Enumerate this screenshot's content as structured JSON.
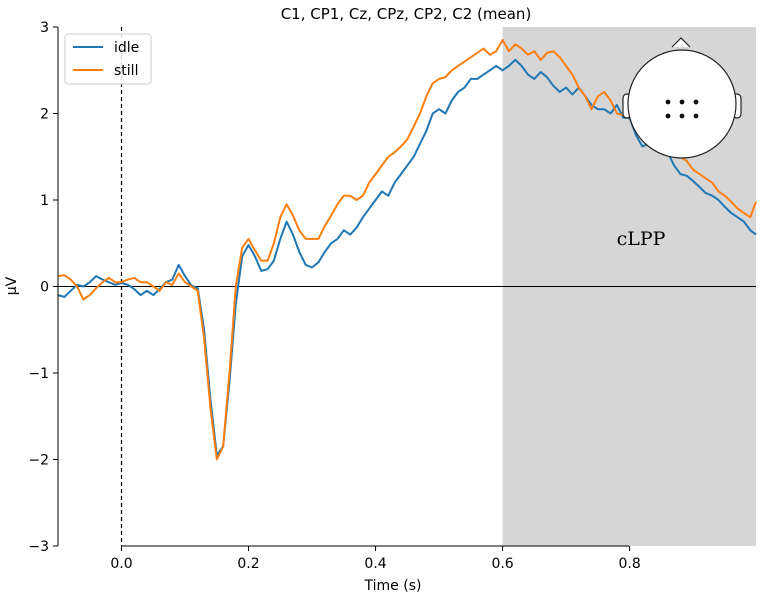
{
  "chart_data": {
    "type": "line",
    "title": "C1, CP1, Cz, CPz, CP2, C2 (mean)",
    "xlabel": "Time (s)",
    "ylabel": "µV",
    "xlim": [
      -0.1,
      0.999
    ],
    "ylim": [
      -3,
      3
    ],
    "xticks": [
      0.0,
      0.2,
      0.4,
      0.6,
      0.8
    ],
    "xtick_labels": [
      "0.0",
      "0.2",
      "0.4",
      "0.6",
      "0.8"
    ],
    "yticks": [
      -3,
      -2,
      -1,
      0,
      1,
      2,
      3
    ],
    "ytick_labels": [
      "−3",
      "−2",
      "−1",
      "0",
      "1",
      "2",
      "3"
    ],
    "grid": false,
    "legend_position": "top-left",
    "shaded_region": {
      "x": [
        0.6,
        0.999
      ],
      "label": "cLPP"
    },
    "vertical_line_x": 0.0,
    "horizontal_line_y": 0.0,
    "sensor_inset": "head-topomap-6-sensors",
    "series": [
      {
        "name": "idle",
        "color": "#1f77b4",
        "x": [
          -0.1,
          -0.09,
          -0.08,
          -0.07,
          -0.06,
          -0.05,
          -0.04,
          -0.03,
          -0.02,
          -0.01,
          0.0,
          0.01,
          0.02,
          0.03,
          0.04,
          0.05,
          0.06,
          0.07,
          0.08,
          0.09,
          0.1,
          0.11,
          0.12,
          0.13,
          0.14,
          0.15,
          0.16,
          0.17,
          0.18,
          0.19,
          0.2,
          0.21,
          0.22,
          0.23,
          0.24,
          0.25,
          0.26,
          0.27,
          0.28,
          0.29,
          0.3,
          0.31,
          0.32,
          0.33,
          0.34,
          0.35,
          0.36,
          0.37,
          0.38,
          0.39,
          0.4,
          0.41,
          0.42,
          0.43,
          0.44,
          0.45,
          0.46,
          0.47,
          0.48,
          0.49,
          0.5,
          0.51,
          0.52,
          0.53,
          0.54,
          0.55,
          0.56,
          0.57,
          0.58,
          0.59,
          0.6,
          0.61,
          0.62,
          0.63,
          0.64,
          0.65,
          0.66,
          0.67,
          0.68,
          0.69,
          0.7,
          0.71,
          0.72,
          0.73,
          0.74,
          0.75,
          0.76,
          0.77,
          0.78,
          0.79,
          0.8,
          0.81,
          0.82,
          0.83,
          0.84,
          0.85,
          0.86,
          0.87,
          0.88,
          0.89,
          0.9,
          0.91,
          0.92,
          0.93,
          0.94,
          0.95,
          0.96,
          0.97,
          0.98,
          0.99,
          0.999
        ],
        "values": [
          -0.1,
          -0.12,
          -0.05,
          0.02,
          0.0,
          0.05,
          0.12,
          0.08,
          0.05,
          0.02,
          0.04,
          0.02,
          -0.03,
          -0.1,
          -0.05,
          -0.1,
          -0.03,
          0.05,
          0.08,
          0.25,
          0.12,
          0.01,
          -0.02,
          -0.5,
          -1.3,
          -1.95,
          -1.85,
          -1.1,
          -0.2,
          0.35,
          0.48,
          0.35,
          0.18,
          0.2,
          0.3,
          0.55,
          0.75,
          0.6,
          0.4,
          0.25,
          0.22,
          0.28,
          0.4,
          0.5,
          0.55,
          0.65,
          0.6,
          0.68,
          0.8,
          0.9,
          1.0,
          1.1,
          1.05,
          1.2,
          1.3,
          1.4,
          1.5,
          1.65,
          1.8,
          2.0,
          2.05,
          2.0,
          2.15,
          2.25,
          2.3,
          2.4,
          2.4,
          2.45,
          2.5,
          2.55,
          2.5,
          2.55,
          2.62,
          2.55,
          2.45,
          2.4,
          2.48,
          2.42,
          2.32,
          2.25,
          2.3,
          2.22,
          2.3,
          2.2,
          2.1,
          2.05,
          2.05,
          2.0,
          2.1,
          1.95,
          1.95,
          1.75,
          1.62,
          1.65,
          1.6,
          1.68,
          1.55,
          1.4,
          1.3,
          1.28,
          1.22,
          1.15,
          1.08,
          1.05,
          1.0,
          0.92,
          0.85,
          0.8,
          0.75,
          0.65,
          0.6
        ]
      },
      {
        "name": "still",
        "color": "#ff7f0e",
        "x": [
          -0.1,
          -0.09,
          -0.08,
          -0.07,
          -0.06,
          -0.05,
          -0.04,
          -0.03,
          -0.02,
          -0.01,
          0.0,
          0.01,
          0.02,
          0.03,
          0.04,
          0.05,
          0.06,
          0.07,
          0.08,
          0.09,
          0.1,
          0.11,
          0.12,
          0.13,
          0.14,
          0.15,
          0.16,
          0.17,
          0.18,
          0.19,
          0.2,
          0.21,
          0.22,
          0.23,
          0.24,
          0.25,
          0.26,
          0.27,
          0.28,
          0.29,
          0.3,
          0.31,
          0.32,
          0.33,
          0.34,
          0.35,
          0.36,
          0.37,
          0.38,
          0.39,
          0.4,
          0.41,
          0.42,
          0.43,
          0.44,
          0.45,
          0.46,
          0.47,
          0.48,
          0.49,
          0.5,
          0.51,
          0.52,
          0.53,
          0.54,
          0.55,
          0.56,
          0.57,
          0.58,
          0.59,
          0.6,
          0.61,
          0.62,
          0.63,
          0.64,
          0.65,
          0.66,
          0.67,
          0.68,
          0.69,
          0.7,
          0.71,
          0.72,
          0.73,
          0.74,
          0.75,
          0.76,
          0.77,
          0.78,
          0.79,
          0.8,
          0.81,
          0.82,
          0.83,
          0.84,
          0.85,
          0.86,
          0.87,
          0.88,
          0.89,
          0.9,
          0.91,
          0.92,
          0.93,
          0.94,
          0.95,
          0.96,
          0.97,
          0.98,
          0.99,
          0.999
        ],
        "values": [
          0.12,
          0.13,
          0.08,
          0.0,
          -0.15,
          -0.1,
          -0.02,
          0.05,
          0.1,
          0.05,
          0.05,
          0.08,
          0.1,
          0.05,
          0.05,
          0.0,
          -0.05,
          0.05,
          0.02,
          0.15,
          0.05,
          0.0,
          -0.05,
          -0.6,
          -1.4,
          -2.0,
          -1.85,
          -1.0,
          0.0,
          0.45,
          0.55,
          0.42,
          0.3,
          0.3,
          0.5,
          0.8,
          0.95,
          0.82,
          0.65,
          0.55,
          0.55,
          0.55,
          0.7,
          0.82,
          0.95,
          1.05,
          1.05,
          1.0,
          1.05,
          1.2,
          1.3,
          1.4,
          1.5,
          1.55,
          1.62,
          1.7,
          1.85,
          2.0,
          2.2,
          2.35,
          2.4,
          2.42,
          2.5,
          2.55,
          2.6,
          2.65,
          2.7,
          2.75,
          2.68,
          2.72,
          2.85,
          2.72,
          2.8,
          2.75,
          2.68,
          2.72,
          2.62,
          2.7,
          2.72,
          2.65,
          2.55,
          2.45,
          2.3,
          2.2,
          2.05,
          2.2,
          2.25,
          2.15,
          2.0,
          1.98,
          2.05,
          1.95,
          1.85,
          1.8,
          1.7,
          1.75,
          1.68,
          1.62,
          1.5,
          1.45,
          1.35,
          1.3,
          1.25,
          1.2,
          1.1,
          1.05,
          0.98,
          0.9,
          0.85,
          0.8,
          0.98
        ]
      }
    ]
  }
}
